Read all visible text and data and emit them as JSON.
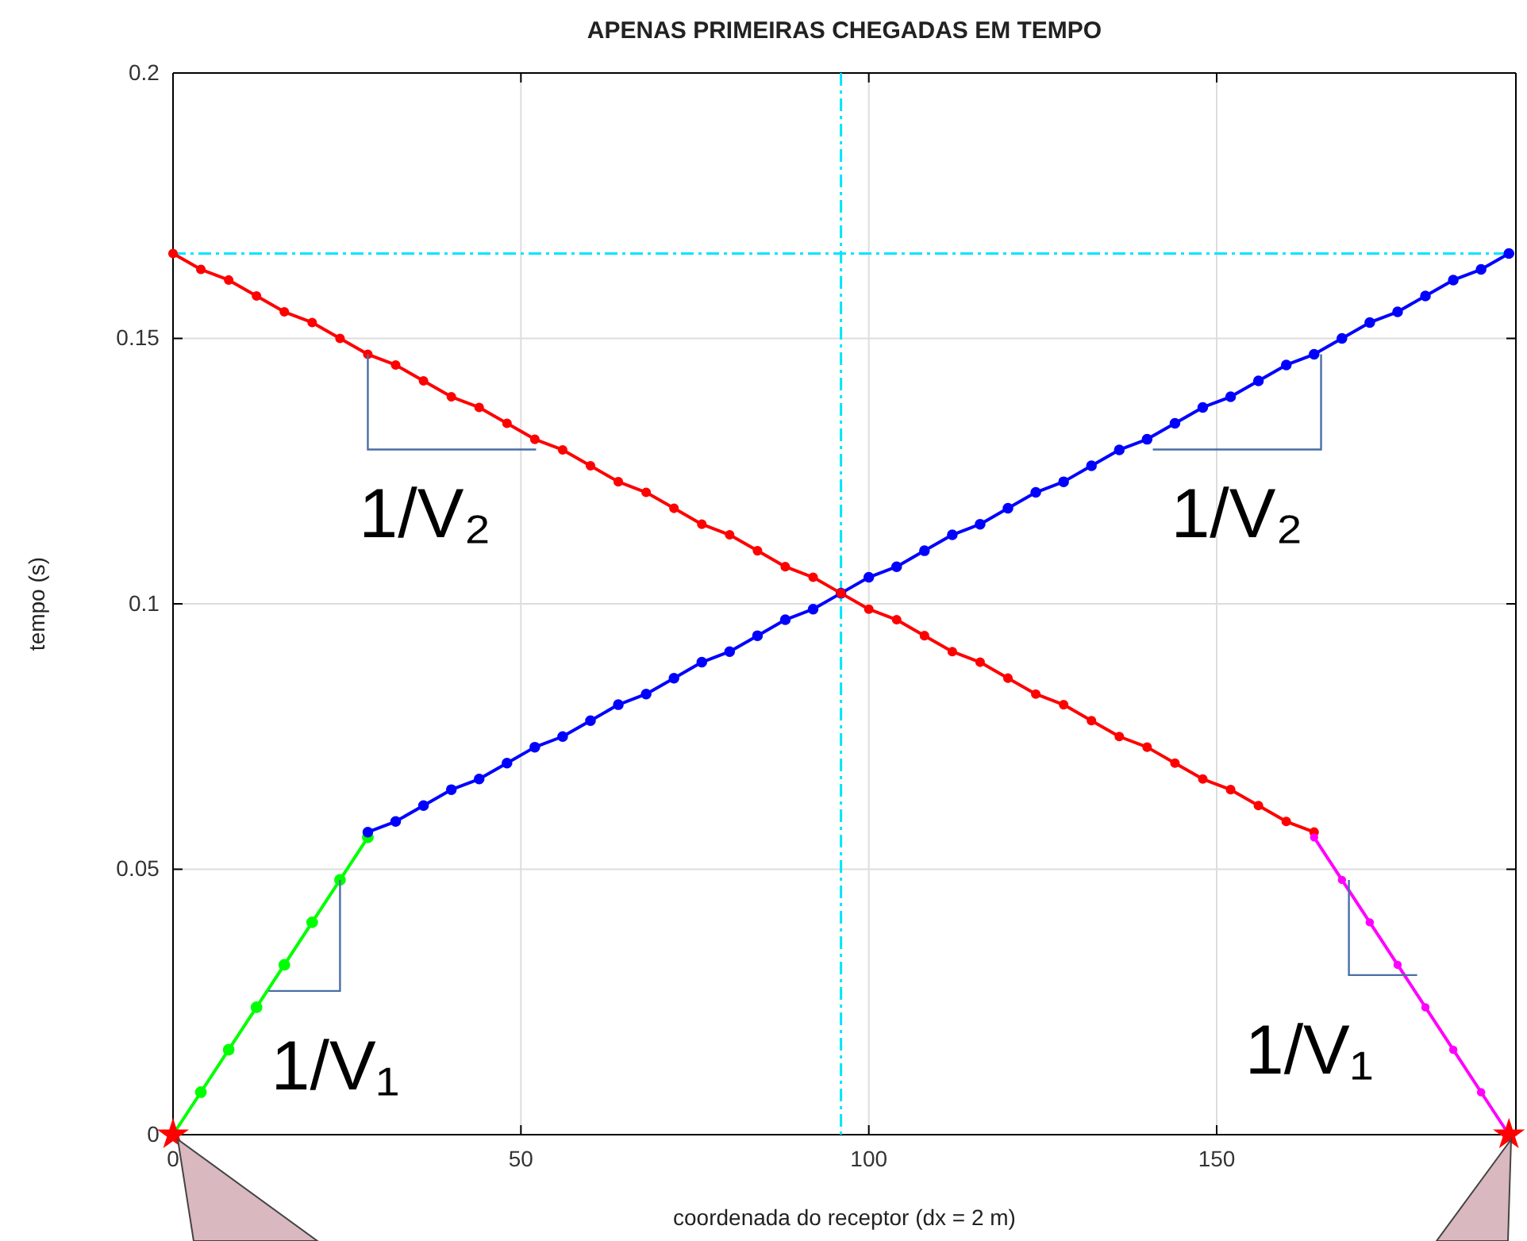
{
  "chart_data": {
    "type": "line",
    "title": "APENAS PRIMEIRAS CHEGADAS EM TEMPO",
    "xlabel": "coordenada do receptor (dx = 2 m)",
    "ylabel": "tempo (s)",
    "xlim": [
      0,
      193
    ],
    "xticks": [
      0,
      50,
      100,
      150
    ],
    "ylim": [
      0,
      0.2
    ],
    "yticks": [
      0,
      0.05,
      0.1,
      0.15,
      0.2
    ],
    "grid": true,
    "marker": "circle",
    "line_style": "solid",
    "series": [
      {
        "color": "#00ff00",
        "x": [
          0,
          4,
          8,
          12,
          16,
          20,
          24,
          28
        ],
        "values": [
          0,
          0.008,
          0.016,
          0.024,
          0.032,
          0.04,
          0.048,
          0.056
        ]
      },
      {
        "color": "#0000ff",
        "x": [
          28,
          32,
          36,
          40,
          44,
          48,
          52,
          56,
          60,
          64,
          68,
          72,
          76,
          80,
          84,
          88,
          92,
          96,
          100,
          104,
          108,
          112,
          116,
          120,
          124,
          128,
          132,
          136,
          140,
          144,
          148,
          152,
          156,
          160,
          164,
          168,
          172,
          176,
          180,
          184,
          188,
          192
        ],
        "values": [
          0.057,
          0.059,
          0.062,
          0.065,
          0.067,
          0.07,
          0.073,
          0.075,
          0.078,
          0.081,
          0.083,
          0.086,
          0.089,
          0.091,
          0.094,
          0.097,
          0.099,
          0.102,
          0.105,
          0.107,
          0.11,
          0.113,
          0.115,
          0.118,
          0.121,
          0.123,
          0.126,
          0.129,
          0.131,
          0.134,
          0.137,
          0.139,
          0.142,
          0.145,
          0.147,
          0.15,
          0.153,
          0.155,
          0.158,
          0.161,
          0.163,
          0.166
        ]
      },
      {
        "color": "#ff0000",
        "x": [
          0,
          4,
          8,
          12,
          16,
          20,
          24,
          28,
          32,
          36,
          40,
          44,
          48,
          52,
          56,
          60,
          64,
          68,
          72,
          76,
          80,
          84,
          88,
          92,
          96,
          100,
          104,
          108,
          112,
          116,
          120,
          124,
          128,
          132,
          136,
          140,
          144,
          148,
          152,
          156,
          160,
          164
        ],
        "values": [
          0.166,
          0.163,
          0.161,
          0.158,
          0.155,
          0.153,
          0.15,
          0.147,
          0.145,
          0.142,
          0.139,
          0.137,
          0.134,
          0.131,
          0.129,
          0.126,
          0.123,
          0.121,
          0.118,
          0.115,
          0.113,
          0.11,
          0.107,
          0.105,
          0.102,
          0.099,
          0.097,
          0.094,
          0.091,
          0.089,
          0.086,
          0.083,
          0.081,
          0.078,
          0.075,
          0.073,
          0.07,
          0.067,
          0.065,
          0.062,
          0.059,
          0.057
        ]
      },
      {
        "color": "#ff00ff",
        "x": [
          164,
          168,
          172,
          176,
          180,
          184,
          188,
          192
        ],
        "values": [
          0.056,
          0.048,
          0.04,
          0.032,
          0.024,
          0.016,
          0.008,
          0
        ]
      },
      {
        "type": "scatter",
        "marker": "star",
        "color": "#ff0000",
        "x": [
          0,
          192
        ],
        "values": [
          0,
          0
        ]
      }
    ],
    "ref_lines": [
      {
        "axis": "x",
        "value": 96,
        "color": "#00e5ff",
        "line_style": "dashed"
      },
      {
        "axis": "y",
        "value": 0.166,
        "color": "#00e5ff",
        "line_style": "dashed"
      }
    ],
    "annotations": [
      {
        "text": "1/V₂",
        "x": 28,
        "y": 0.147
      },
      {
        "text": "1/V₂",
        "x": 165,
        "y": 0.147
      },
      {
        "text": "1/V₁",
        "x": 24,
        "y": 0.048
      },
      {
        "text": "1/V₁",
        "x": 169,
        "y": 0.048
      }
    ]
  }
}
